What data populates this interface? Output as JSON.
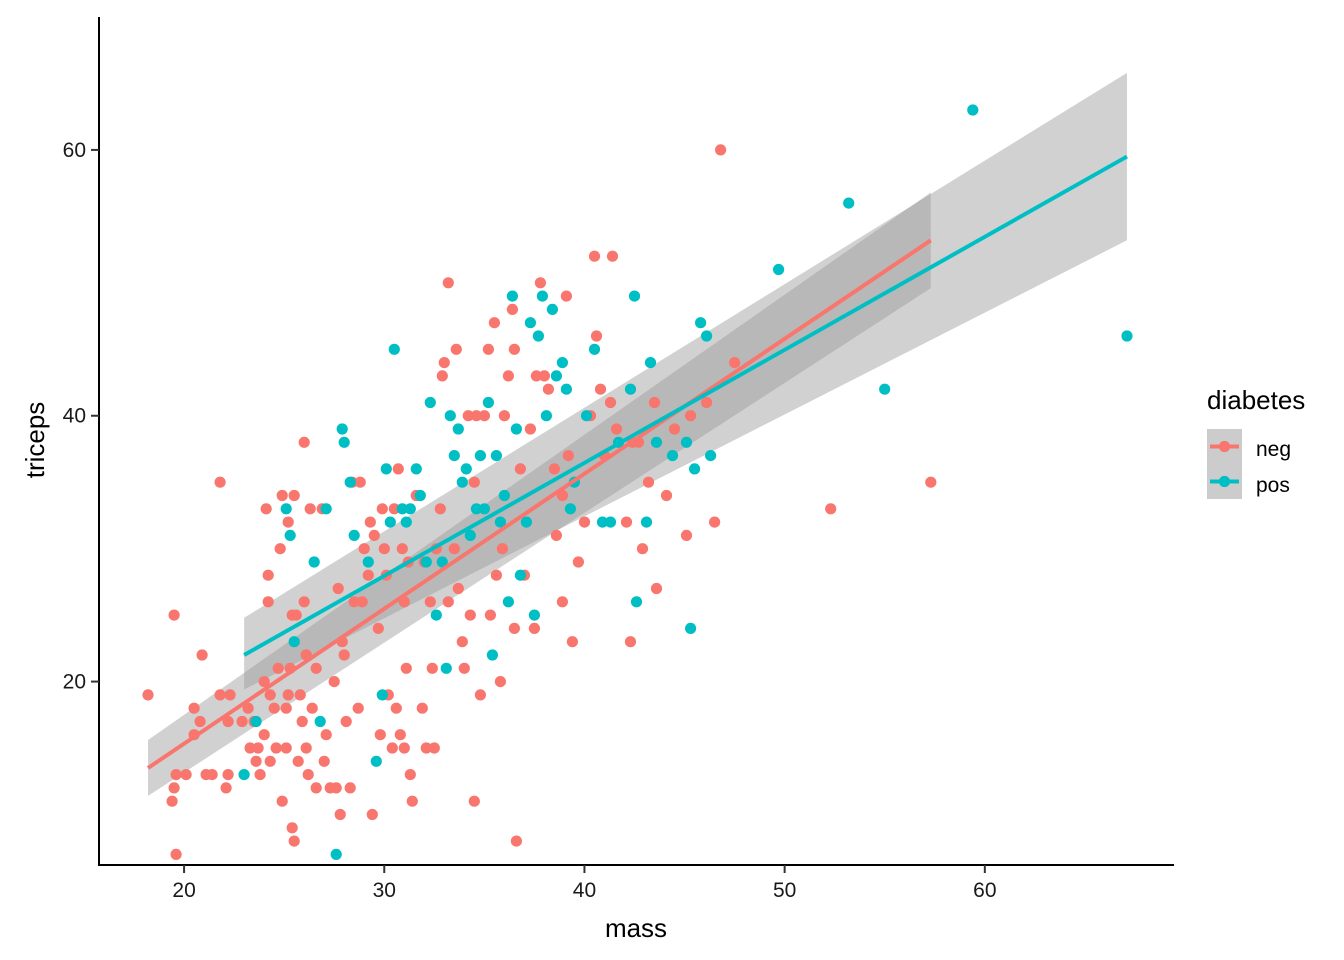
{
  "chart_data": {
    "type": "scatter",
    "xlabel": "mass",
    "ylabel": "triceps",
    "xlim": [
      15.75,
      69.45
    ],
    "ylim": [
      6.2,
      70.0
    ],
    "x_ticks": [
      20,
      30,
      40,
      50,
      60
    ],
    "y_ticks": [
      20,
      40,
      60
    ],
    "grid": false,
    "legend": {
      "title": "diabetes",
      "placement": "right"
    },
    "series": [
      {
        "name": "neg",
        "color": "#F8766D",
        "fit_line": {
          "x": [
            18.2,
            57.3
          ],
          "y": [
            13.5,
            53.2
          ]
        },
        "confidence_band": {
          "x": [
            18.2,
            57.3
          ],
          "lower": [
            11.4,
            49.6
          ],
          "upper": [
            15.6,
            56.8
          ]
        },
        "points": [
          [
            18.2,
            19
          ],
          [
            19.4,
            11
          ],
          [
            19.5,
            12
          ],
          [
            19.6,
            13
          ],
          [
            19.5,
            25
          ],
          [
            19.6,
            7
          ],
          [
            20.1,
            13
          ],
          [
            20.5,
            16
          ],
          [
            20.5,
            18
          ],
          [
            20.8,
            17
          ],
          [
            20.9,
            22
          ],
          [
            21.1,
            13
          ],
          [
            21.4,
            13
          ],
          [
            21.8,
            19
          ],
          [
            21.8,
            35
          ],
          [
            22.1,
            12
          ],
          [
            22.2,
            13
          ],
          [
            22.3,
            19
          ],
          [
            22.2,
            17
          ],
          [
            22.9,
            17
          ],
          [
            23.2,
            18
          ],
          [
            23.3,
            15
          ],
          [
            23.5,
            17
          ],
          [
            23.6,
            14
          ],
          [
            23.7,
            15
          ],
          [
            23.8,
            13
          ],
          [
            24.0,
            16
          ],
          [
            24.0,
            20
          ],
          [
            24.1,
            33
          ],
          [
            24.2,
            26
          ],
          [
            24.2,
            28
          ],
          [
            24.3,
            14
          ],
          [
            24.3,
            19
          ],
          [
            24.5,
            18
          ],
          [
            24.6,
            15
          ],
          [
            24.7,
            21
          ],
          [
            24.8,
            30
          ],
          [
            24.9,
            34
          ],
          [
            24.9,
            11
          ],
          [
            25.1,
            15
          ],
          [
            25.1,
            18
          ],
          [
            25.2,
            19
          ],
          [
            25.3,
            21
          ],
          [
            25.2,
            32
          ],
          [
            25.4,
            25
          ],
          [
            25.4,
            9
          ],
          [
            25.5,
            34
          ],
          [
            25.5,
            8
          ],
          [
            25.6,
            25
          ],
          [
            25.7,
            14
          ],
          [
            25.8,
            19
          ],
          [
            25.9,
            17
          ],
          [
            26.0,
            38
          ],
          [
            26.0,
            26
          ],
          [
            26.1,
            15
          ],
          [
            26.1,
            22
          ],
          [
            26.2,
            13
          ],
          [
            26.3,
            33
          ],
          [
            26.4,
            18
          ],
          [
            26.6,
            21
          ],
          [
            26.6,
            12
          ],
          [
            26.9,
            33
          ],
          [
            27.0,
            14
          ],
          [
            27.1,
            16
          ],
          [
            27.3,
            12
          ],
          [
            27.5,
            20
          ],
          [
            27.6,
            12
          ],
          [
            27.7,
            27
          ],
          [
            27.8,
            10
          ],
          [
            27.9,
            23
          ],
          [
            28.0,
            22
          ],
          [
            28.1,
            17
          ],
          [
            28.3,
            12
          ],
          [
            28.4,
            35
          ],
          [
            28.5,
            26
          ],
          [
            28.7,
            18
          ],
          [
            28.8,
            35
          ],
          [
            28.9,
            26
          ],
          [
            29.0,
            30
          ],
          [
            29.2,
            28
          ],
          [
            29.3,
            32
          ],
          [
            29.4,
            10
          ],
          [
            29.5,
            31
          ],
          [
            29.7,
            24
          ],
          [
            29.8,
            16
          ],
          [
            29.9,
            33
          ],
          [
            30.0,
            30
          ],
          [
            30.1,
            28
          ],
          [
            30.2,
            19
          ],
          [
            30.4,
            15
          ],
          [
            30.5,
            33
          ],
          [
            30.6,
            18
          ],
          [
            30.7,
            36
          ],
          [
            30.8,
            16
          ],
          [
            30.9,
            30
          ],
          [
            31.0,
            26
          ],
          [
            31.1,
            21
          ],
          [
            31.0,
            15
          ],
          [
            31.2,
            29
          ],
          [
            31.3,
            13
          ],
          [
            31.4,
            11
          ],
          [
            31.6,
            34
          ],
          [
            31.9,
            18
          ],
          [
            32.0,
            29
          ],
          [
            32.1,
            15
          ],
          [
            32.3,
            26
          ],
          [
            32.4,
            21
          ],
          [
            32.5,
            15
          ],
          [
            32.6,
            30
          ],
          [
            32.8,
            33
          ],
          [
            32.9,
            43
          ],
          [
            33.0,
            44
          ],
          [
            33.2,
            50
          ],
          [
            33.2,
            26
          ],
          [
            33.5,
            30
          ],
          [
            33.6,
            45
          ],
          [
            33.7,
            27
          ],
          [
            33.9,
            23
          ],
          [
            34.0,
            21
          ],
          [
            34.2,
            40
          ],
          [
            34.3,
            25
          ],
          [
            34.5,
            35
          ],
          [
            34.5,
            11
          ],
          [
            34.6,
            40
          ],
          [
            34.8,
            19
          ],
          [
            35.0,
            40
          ],
          [
            35.2,
            45
          ],
          [
            35.3,
            25
          ],
          [
            35.5,
            47
          ],
          [
            35.6,
            28
          ],
          [
            35.8,
            20
          ],
          [
            35.9,
            30
          ],
          [
            36.0,
            40
          ],
          [
            36.2,
            43
          ],
          [
            36.4,
            48
          ],
          [
            36.5,
            45
          ],
          [
            36.5,
            24
          ],
          [
            36.6,
            8
          ],
          [
            36.8,
            36
          ],
          [
            37.0,
            28
          ],
          [
            37.3,
            39
          ],
          [
            37.5,
            24
          ],
          [
            37.6,
            43
          ],
          [
            37.8,
            50
          ],
          [
            38.0,
            43
          ],
          [
            38.2,
            42
          ],
          [
            38.5,
            36
          ],
          [
            38.6,
            31
          ],
          [
            38.9,
            34
          ],
          [
            38.9,
            26
          ],
          [
            39.1,
            49
          ],
          [
            39.2,
            37
          ],
          [
            39.4,
            23
          ],
          [
            39.7,
            29
          ],
          [
            40.0,
            32
          ],
          [
            40.3,
            40
          ],
          [
            40.5,
            52
          ],
          [
            40.6,
            46
          ],
          [
            40.8,
            42
          ],
          [
            41.0,
            37
          ],
          [
            41.3,
            41
          ],
          [
            41.4,
            52
          ],
          [
            41.6,
            39
          ],
          [
            42.1,
            32
          ],
          [
            42.3,
            23
          ],
          [
            42.4,
            38
          ],
          [
            42.7,
            38
          ],
          [
            42.9,
            30
          ],
          [
            43.2,
            35
          ],
          [
            43.5,
            41
          ],
          [
            43.6,
            27
          ],
          [
            44.1,
            34
          ],
          [
            44.5,
            39
          ],
          [
            45.1,
            31
          ],
          [
            45.3,
            40
          ],
          [
            46.1,
            41
          ],
          [
            46.5,
            32
          ],
          [
            46.8,
            60
          ],
          [
            47.5,
            44
          ],
          [
            52.3,
            33
          ],
          [
            57.3,
            35
          ]
        ]
      },
      {
        "name": "pos",
        "color": "#00BFC4",
        "fit_line": {
          "x": [
            23.0,
            67.1
          ],
          "y": [
            22.0,
            59.5
          ]
        },
        "confidence_band": {
          "x": [
            23.0,
            67.1
          ],
          "lower": [
            19.4,
            53.2
          ],
          "upper": [
            24.8,
            65.8
          ]
        },
        "points": [
          [
            23.0,
            13
          ],
          [
            23.6,
            17
          ],
          [
            25.1,
            33
          ],
          [
            25.3,
            31
          ],
          [
            25.5,
            23
          ],
          [
            26.5,
            29
          ],
          [
            26.8,
            17
          ],
          [
            27.1,
            33
          ],
          [
            27.6,
            7
          ],
          [
            27.9,
            39
          ],
          [
            28.0,
            38
          ],
          [
            28.3,
            35
          ],
          [
            28.5,
            31
          ],
          [
            29.2,
            29
          ],
          [
            29.6,
            14
          ],
          [
            29.9,
            19
          ],
          [
            30.1,
            36
          ],
          [
            30.3,
            32
          ],
          [
            30.5,
            45
          ],
          [
            30.9,
            33
          ],
          [
            31.1,
            32
          ],
          [
            31.3,
            33
          ],
          [
            31.6,
            36
          ],
          [
            31.8,
            34
          ],
          [
            32.1,
            29
          ],
          [
            32.3,
            41
          ],
          [
            32.6,
            25
          ],
          [
            32.9,
            29
          ],
          [
            33.1,
            21
          ],
          [
            33.3,
            40
          ],
          [
            33.5,
            37
          ],
          [
            33.7,
            39
          ],
          [
            33.9,
            35
          ],
          [
            34.1,
            36
          ],
          [
            34.3,
            31
          ],
          [
            34.6,
            33
          ],
          [
            34.8,
            37
          ],
          [
            35.0,
            33
          ],
          [
            35.2,
            41
          ],
          [
            35.4,
            22
          ],
          [
            35.6,
            37
          ],
          [
            35.8,
            32
          ],
          [
            36.0,
            34
          ],
          [
            36.2,
            26
          ],
          [
            36.4,
            49
          ],
          [
            36.6,
            39
          ],
          [
            36.8,
            28
          ],
          [
            37.1,
            32
          ],
          [
            37.3,
            47
          ],
          [
            37.5,
            25
          ],
          [
            37.7,
            46
          ],
          [
            37.9,
            49
          ],
          [
            38.1,
            40
          ],
          [
            38.4,
            48
          ],
          [
            38.6,
            43
          ],
          [
            38.9,
            44
          ],
          [
            39.1,
            42
          ],
          [
            39.3,
            33
          ],
          [
            39.5,
            35
          ],
          [
            40.1,
            40
          ],
          [
            40.5,
            45
          ],
          [
            40.9,
            32
          ],
          [
            41.3,
            32
          ],
          [
            41.7,
            38
          ],
          [
            42.3,
            42
          ],
          [
            42.5,
            49
          ],
          [
            42.6,
            26
          ],
          [
            43.1,
            32
          ],
          [
            43.3,
            44
          ],
          [
            43.6,
            38
          ],
          [
            44.4,
            37
          ],
          [
            45.1,
            38
          ],
          [
            45.3,
            24
          ],
          [
            45.5,
            36
          ],
          [
            45.8,
            47
          ],
          [
            46.1,
            46
          ],
          [
            46.3,
            37
          ],
          [
            49.7,
            51
          ],
          [
            53.2,
            56
          ],
          [
            55.0,
            42
          ],
          [
            59.4,
            63
          ],
          [
            67.1,
            46
          ]
        ]
      }
    ]
  }
}
